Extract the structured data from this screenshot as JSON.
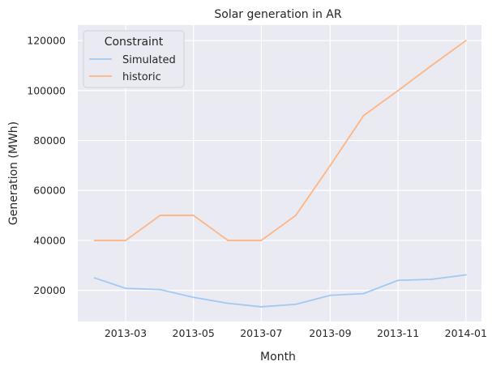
{
  "chart_data": {
    "type": "line",
    "title": "Solar generation in AR",
    "xlabel": "Month",
    "ylabel": "Generation (MWh)",
    "x": [
      "2013-02-01",
      "2013-03-01",
      "2013-04-01",
      "2013-05-01",
      "2013-06-01",
      "2013-07-01",
      "2013-08-01",
      "2013-09-01",
      "2013-10-01",
      "2013-11-01",
      "2013-12-01",
      "2014-01-01"
    ],
    "series": [
      {
        "name": "Simulated",
        "color": "#a1c9f4",
        "values": [
          25000,
          20800,
          20300,
          17200,
          14800,
          13400,
          14400,
          18000,
          18700,
          24000,
          24400,
          26200
        ]
      },
      {
        "name": "historic",
        "color": "#ffb482",
        "values": [
          40000,
          40000,
          50000,
          50000,
          40000,
          40000,
          50000,
          70000,
          90000,
          100000,
          110000,
          120000
        ]
      }
    ],
    "xticks": [
      "2013-03",
      "2013-05",
      "2013-07",
      "2013-09",
      "2013-11",
      "2014-01"
    ],
    "yticks": [
      20000,
      40000,
      60000,
      80000,
      100000,
      120000
    ],
    "ylim": [
      7550,
      126220
    ],
    "xlim": [
      "2013-01-17",
      "2014-01-15"
    ],
    "grid": true,
    "legend": {
      "title": "Constraint",
      "placement": "top-left"
    },
    "background_color": "#eaeaf2",
    "grid_color": "#ffffff"
  }
}
